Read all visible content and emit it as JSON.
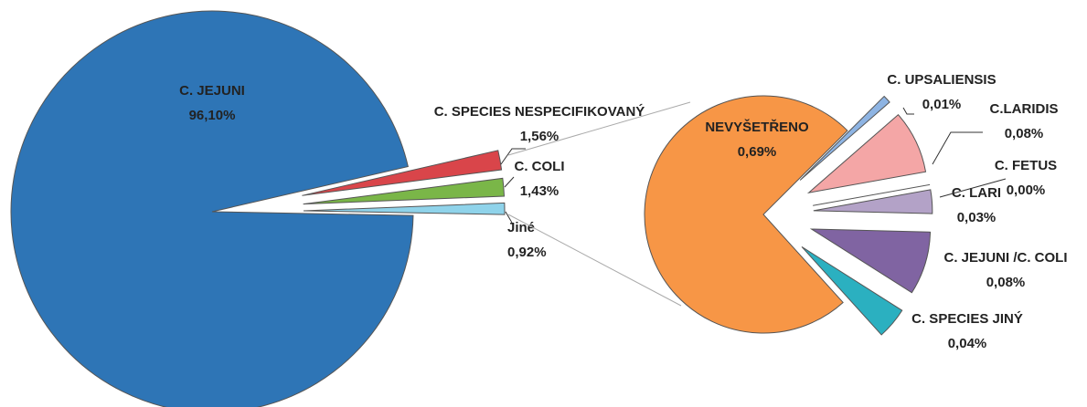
{
  "chart_data": [
    {
      "type": "pie",
      "categories": [
        "C. JEJUNI",
        "C. SPECIES NESPECIFIKOVANÝ",
        "C. COLI",
        "Jiné"
      ],
      "values": [
        96.1,
        1.56,
        1.43,
        0.92
      ],
      "value_labels": [
        "96,10%",
        "1,56%",
        "1,43%",
        "0,92%"
      ],
      "colors": [
        "#2e75b6",
        "#d9454a",
        "#7ab648",
        "#8fd3ea"
      ]
    },
    {
      "type": "pie",
      "categories": [
        "NEVYŠETŘENO",
        "C. UPSALIENSIS",
        "C.LARIDIS",
        "C. FETUS",
        "C. LARI",
        "C. JEJUNI /C. COLI",
        "C. SPECIES JINÝ"
      ],
      "values": [
        0.69,
        0.01,
        0.08,
        0.0,
        0.03,
        0.08,
        0.04
      ],
      "value_labels": [
        "0,69%",
        "0,01%",
        "0,08%",
        "0,00%",
        "0,03%",
        "0,08%",
        "0,04%"
      ],
      "colors": [
        "#f79646",
        "#8eb4e3",
        "#f4a6a6",
        "#9bbb59",
        "#b3a2c7",
        "#8064a2",
        "#2bb0c0"
      ]
    }
  ]
}
